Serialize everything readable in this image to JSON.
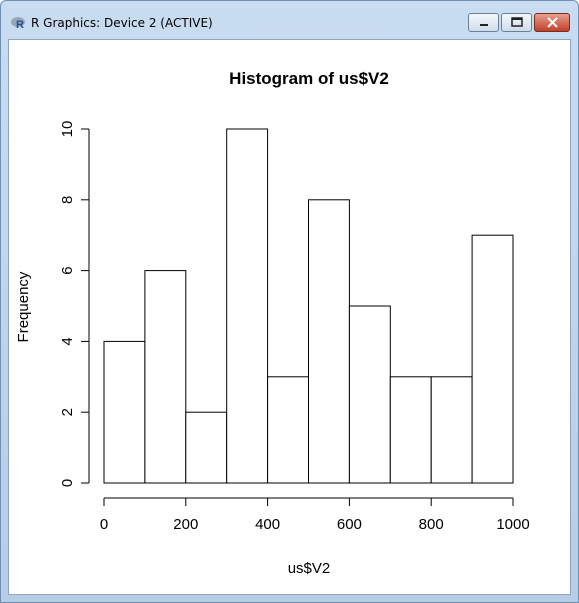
{
  "window": {
    "title": "R Graphics: Device 2 (ACTIVE)",
    "icon": "r-logo-icon",
    "buttons": [
      "minimize-icon",
      "maximize-icon",
      "close-icon"
    ]
  },
  "chart_data": {
    "type": "bar",
    "title": "Histogram of us$V2",
    "xlabel": "us$V2",
    "ylabel": "Frequency",
    "bin_edges": [
      0,
      100,
      200,
      300,
      400,
      500,
      600,
      700,
      800,
      900,
      1000
    ],
    "values": [
      4,
      6,
      2,
      10,
      3,
      8,
      5,
      3,
      3,
      7
    ],
    "xlim": [
      0,
      1000
    ],
    "ylim": [
      0,
      10
    ],
    "x_ticks": [
      0,
      200,
      400,
      600,
      800,
      1000
    ],
    "y_ticks": [
      0,
      2,
      4,
      6,
      8,
      10
    ],
    "grid": false,
    "bar_fill": "#ffffff",
    "bar_stroke": "#000000"
  }
}
